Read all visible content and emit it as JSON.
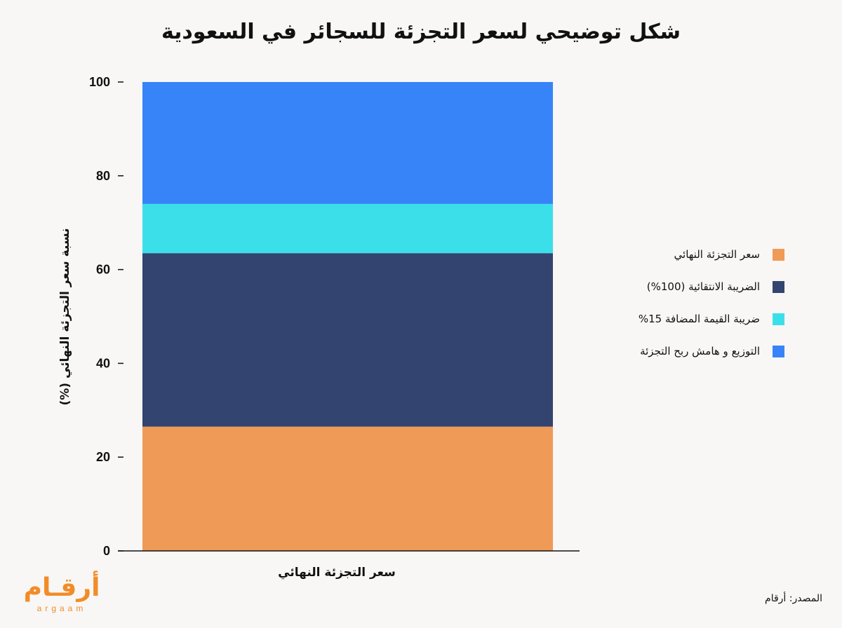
{
  "chart_data": {
    "type": "bar",
    "stacked": true,
    "title": "شكل توضيحي لسعر التجزئة للسجائر في السعودية",
    "xlabel": "",
    "ylabel": "نسبة سعر التجزئة النهائي (%)",
    "categories": [
      "سعر التجزئة النهائي"
    ],
    "ylim": [
      0,
      100
    ],
    "yticks": [
      0,
      20,
      40,
      60,
      80,
      100
    ],
    "grid": false,
    "legend_position": "right",
    "series": [
      {
        "name": "سعر التجزئة النهائي",
        "values": [
          26.5
        ],
        "color": "#f09a57"
      },
      {
        "name": "الضريبة الانتقائية (100%)",
        "values": [
          37.0
        ],
        "color": "#32446f"
      },
      {
        "name": "ضريبة القيمة المضافة 15%",
        "values": [
          10.5
        ],
        "color": "#3bdfea"
      },
      {
        "name": "التوزيع و هامش ربح التجزئة",
        "values": [
          26.0
        ],
        "color": "#3784f9"
      }
    ]
  },
  "source": "المصدر: أرقام",
  "logo": {
    "text": "أرقـام",
    "subtext": "argaam",
    "color": "#f28c28"
  }
}
